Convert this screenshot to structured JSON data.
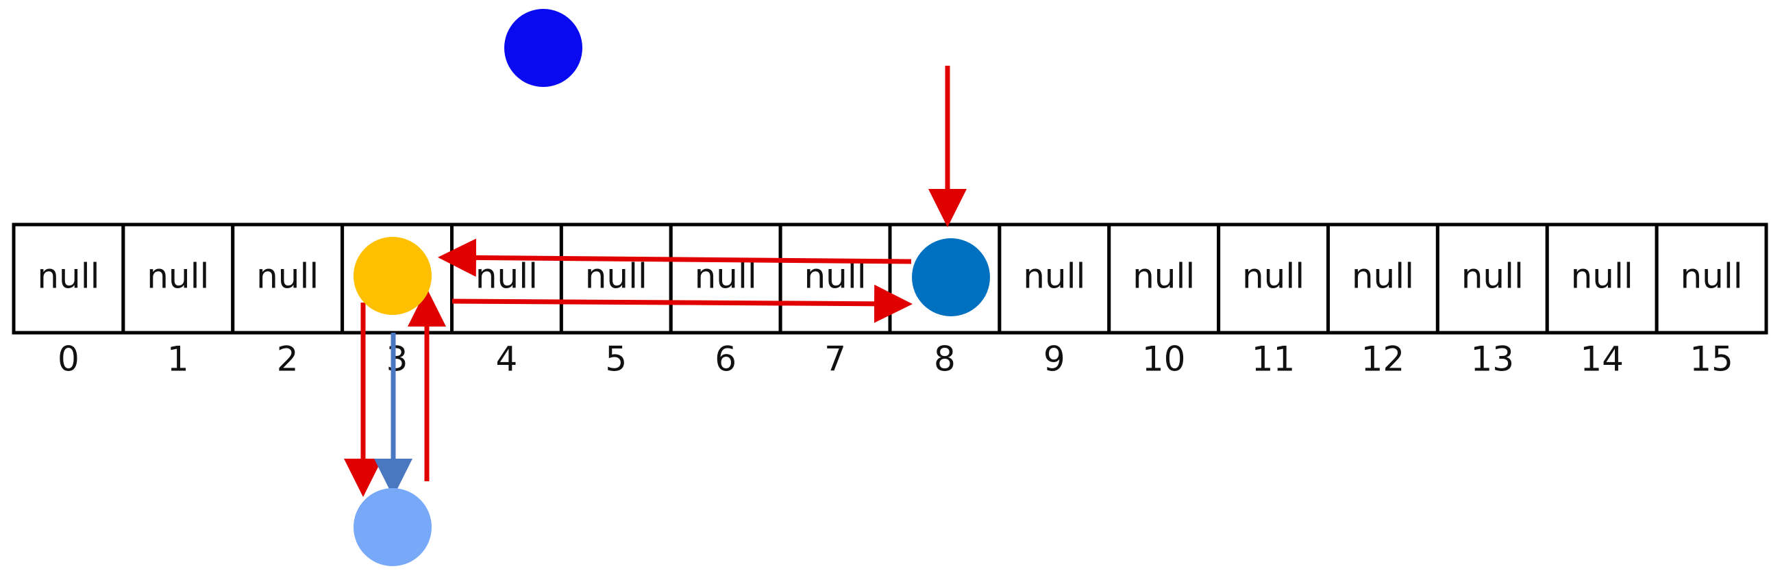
{
  "array": {
    "cells": [
      "null",
      "null",
      "null",
      "",
      "null",
      "null",
      "null",
      "null",
      "",
      "null",
      "null",
      "null",
      "null",
      "null",
      "null",
      "null"
    ],
    "indices": [
      "0",
      "1",
      "2",
      "3",
      "4",
      "5",
      "6",
      "7",
      "8",
      "9",
      "10",
      "11",
      "12",
      "13",
      "14",
      "15"
    ]
  },
  "colors": {
    "cell_border": "#000000",
    "arrow_red": "#e00000",
    "arrow_blue": "#4a78c0",
    "node_floating": "#0a0af0",
    "node_bucket3": "#ffc000",
    "node_bucket8": "#0070c0",
    "node_chained": "#78a8f8"
  },
  "nodes": [
    {
      "id": "node-floating",
      "color_key": "node_floating",
      "semantic": "unplaced element"
    },
    {
      "id": "node-bucket-3",
      "color_key": "node_bucket3",
      "bucket": "3"
    },
    {
      "id": "node-bucket-8",
      "color_key": "node_bucket8",
      "bucket": "8"
    },
    {
      "id": "node-chained",
      "color_key": "node_chained",
      "bucket": "3"
    }
  ]
}
